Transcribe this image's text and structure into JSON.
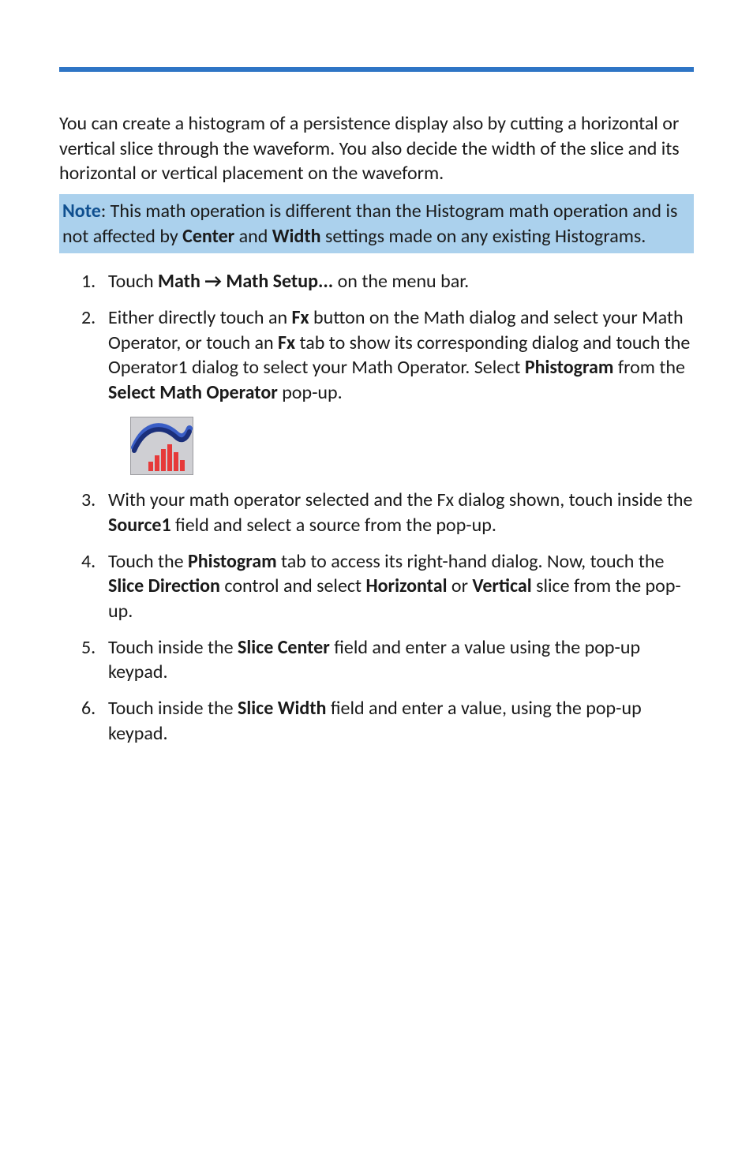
{
  "colors": {
    "rule": "#2e75c5",
    "note_bg": "#abd1ed",
    "note_label": "#0f4f8f",
    "text": "#1a1a1a",
    "icon_bg": "#cfcfd3",
    "icon_border": "#9b9ba0",
    "icon_swoosh_top": "#3a5ec6",
    "icon_swoosh_bottom": "#1b2f7a",
    "icon_bars": "#e63a3a"
  },
  "intro": "You can create a histogram of a persistence display also by cutting a horizontal or vertical slice through the waveform. You also decide the width of the slice and its horizontal or vertical placement on the waveform.",
  "note": {
    "label": "Note",
    "rest": ": This math operation is different than the Histogram math operation and is not affected by ",
    "bold1": "Center",
    "mid": " and ",
    "bold2": "Width",
    "tail": " settings made on any existing Histograms."
  },
  "steps": [
    {
      "n": "1.",
      "parts": [
        {
          "t": "Touch "
        },
        {
          "t": "Math → Math Setup...",
          "b": true
        },
        {
          "t": " on the menu bar."
        }
      ]
    },
    {
      "n": "2.",
      "parts": [
        {
          "t": "Either directly touch an "
        },
        {
          "t": "Fx",
          "b": true
        },
        {
          "t": " button on the Math dialog and select your Math Operator, or touch an "
        },
        {
          "t": "Fx",
          "b": true
        },
        {
          "t": " tab to show its corresponding dialog and touch the Operator1 dialog to select your Math Operator. Select "
        },
        {
          "t": "Phistogram",
          "b": true
        },
        {
          "t": " from the "
        },
        {
          "t": "Select Math Operator",
          "b": true
        },
        {
          "t": " pop-up."
        }
      ],
      "icon": true
    },
    {
      "n": "3.",
      "parts": [
        {
          "t": "With your math operator selected and the Fx dialog shown, touch inside the "
        },
        {
          "t": "Source1",
          "b": true
        },
        {
          "t": " field and select a source from the pop-up."
        }
      ]
    },
    {
      "n": "4.",
      "parts": [
        {
          "t": "Touch the "
        },
        {
          "t": "Phistogram",
          "b": true
        },
        {
          "t": " tab to access its right-hand dialog. Now, touch the "
        },
        {
          "t": "Slice Direction",
          "b": true
        },
        {
          "t": " control and select "
        },
        {
          "t": "Horizontal",
          "b": true
        },
        {
          "t": " or "
        },
        {
          "t": "Vertical",
          "b": true
        },
        {
          "t": " slice from the pop-up."
        }
      ]
    },
    {
      "n": "5.",
      "parts": [
        {
          "t": "Touch inside the "
        },
        {
          "t": "Slice Center",
          "b": true
        },
        {
          "t": " field and enter a value using the pop-up keypad."
        }
      ]
    },
    {
      "n": "6.",
      "parts": [
        {
          "t": "Touch inside the "
        },
        {
          "t": "Slice Width",
          "b": true
        },
        {
          "t": " field and enter a value, using the pop-up keypad."
        }
      ]
    }
  ]
}
